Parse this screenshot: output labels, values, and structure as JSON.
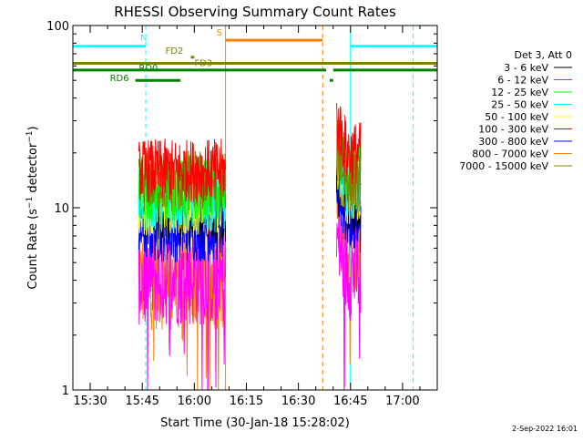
{
  "chart_data": {
    "type": "line",
    "title": "RHESSI Observing Summary Count Rates",
    "xlabel": "Start Time (30-Jan-18 15:28:02)",
    "ylabel": "Count Rate (s⁻¹ detector⁻¹)",
    "ylabel_main": "Count Rate (s",
    "ylabel_sup1": "−1",
    "ylabel_mid": " detector",
    "ylabel_sup2": "−1",
    "ylabel_end": ")",
    "yscale": "log",
    "ylim": [
      1,
      100
    ],
    "xlim": [
      "15:25",
      "17:10"
    ],
    "xticks": [
      "15:30",
      "15:45",
      "16:00",
      "16:15",
      "16:30",
      "16:45",
      "17:00"
    ],
    "yticks": [
      "1",
      "10",
      "100"
    ],
    "legend_title": "Det 3, Att 0",
    "legend_position": "right",
    "series": [
      {
        "name": "3 - 6 keV",
        "color": "#000000",
        "level1": 9.5,
        "level2": 10.5
      },
      {
        "name": "6 - 12 keV",
        "color": "#ff00ff",
        "level1": 4.2,
        "level2": 4.5
      },
      {
        "name": "12 - 25 keV",
        "color": "#00ff00",
        "level1": 12.5,
        "level2": 15
      },
      {
        "name": "25 - 50 keV",
        "color": "#00ffff",
        "level1": 11,
        "level2": 13
      },
      {
        "name": "50 - 100 keV",
        "color": "#ffff00",
        "level1": 10.5,
        "level2": 12
      },
      {
        "name": "100 - 300 keV",
        "color": "#ff0000",
        "level1": 16,
        "level2": 20
      },
      {
        "name": "300 - 800 keV",
        "color": "#0000ff",
        "level1": 7.5,
        "level2": 8.5
      },
      {
        "name": "800 - 7000 keV",
        "color": "#ff8000",
        "level1": 4.0,
        "level2": 6.5
      },
      {
        "name": "7000 - 15000 keV",
        "color": "#808000",
        "level1": 14,
        "level2": 14
      }
    ],
    "data_segments": [
      [
        "15:44",
        "16:09"
      ],
      [
        "16:41",
        "16:48"
      ]
    ],
    "flags": [
      {
        "label": "N",
        "color": "#00ffff",
        "spans": [
          [
            "15:25",
            "15:46"
          ],
          [
            "16:45",
            "17:10"
          ]
        ],
        "rate": 77
      },
      {
        "label": "S",
        "color": "#ff8000",
        "spans": [
          [
            "16:09",
            "16:37"
          ]
        ],
        "rate": 83
      },
      {
        "label": "FD2",
        "color": "#808000",
        "spans": [
          [
            "15:59",
            "16:00"
          ]
        ],
        "rate": 67
      },
      {
        "label": "FD3",
        "color": "#808000",
        "spans": [
          [
            "15:25",
            "17:10"
          ]
        ],
        "rate": 62
      },
      {
        "label": "RD0",
        "color": "#008000",
        "spans": [
          [
            "15:25",
            "16:38"
          ],
          [
            "16:40",
            "17:10"
          ]
        ],
        "rate": 57
      },
      {
        "label": "RD6",
        "color": "#008000",
        "spans": [
          [
            "15:43",
            "15:56"
          ],
          [
            "16:39",
            "16:40"
          ]
        ],
        "rate": 50
      }
    ],
    "vlines": [
      {
        "time": "15:25",
        "color": "#00ffff",
        "style": "solid"
      },
      {
        "time": "15:46",
        "color": "#00ffff",
        "style": "dashed"
      },
      {
        "time": "16:09",
        "color": "#ff8000",
        "style": "solid"
      },
      {
        "time": "16:37",
        "color": "#ff8000",
        "style": "dashed"
      },
      {
        "time": "16:45",
        "color": "#00ffff",
        "style": "solid"
      },
      {
        "time": "17:03",
        "color": "#00ffff",
        "style": "dashed"
      }
    ]
  },
  "footer_date": "2-Sep-2022 16:01"
}
